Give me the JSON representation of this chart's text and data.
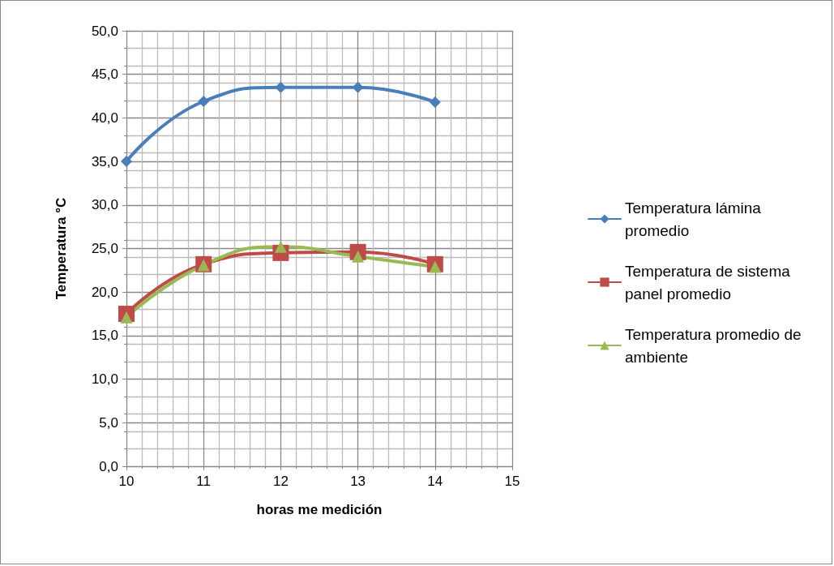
{
  "chart_data": {
    "type": "line",
    "xlabel": "horas me medición",
    "ylabel": "Temperatura °C",
    "x": [
      10,
      11,
      12,
      13,
      14
    ],
    "series": [
      {
        "name": "Temperatura lámina promedio",
        "color": "#4a7ebb",
        "marker": "diamond",
        "values": [
          35.0,
          41.9,
          43.5,
          43.5,
          41.8
        ]
      },
      {
        "name": "Temperatura de sistema panel promedio",
        "color": "#be4b48",
        "marker": "square",
        "values": [
          17.5,
          23.2,
          24.5,
          24.6,
          23.2
        ]
      },
      {
        "name": "Temperatura promedio de ambiente",
        "color": "#98b954",
        "marker": "triangle",
        "values": [
          17.1,
          23.1,
          25.2,
          24.1,
          22.9
        ]
      }
    ],
    "xlim": [
      10,
      15
    ],
    "xticks": [
      10,
      11,
      12,
      13,
      14,
      15
    ],
    "ylim": [
      0,
      50
    ],
    "yticks": [
      {
        "value": 0,
        "label": "0,0"
      },
      {
        "value": 5,
        "label": "5,0"
      },
      {
        "value": 10,
        "label": "10,0"
      },
      {
        "value": 15,
        "label": "15,0"
      },
      {
        "value": 20,
        "label": "20,0"
      },
      {
        "value": 25,
        "label": "25,0"
      },
      {
        "value": 30,
        "label": "30,0"
      },
      {
        "value": 35,
        "label": "35,0"
      },
      {
        "value": 40,
        "label": "40,0"
      },
      {
        "value": 45,
        "label": "45,0"
      },
      {
        "value": 50,
        "label": "50,0"
      }
    ],
    "grid": true,
    "legend": "right",
    "line_style": "solid"
  }
}
